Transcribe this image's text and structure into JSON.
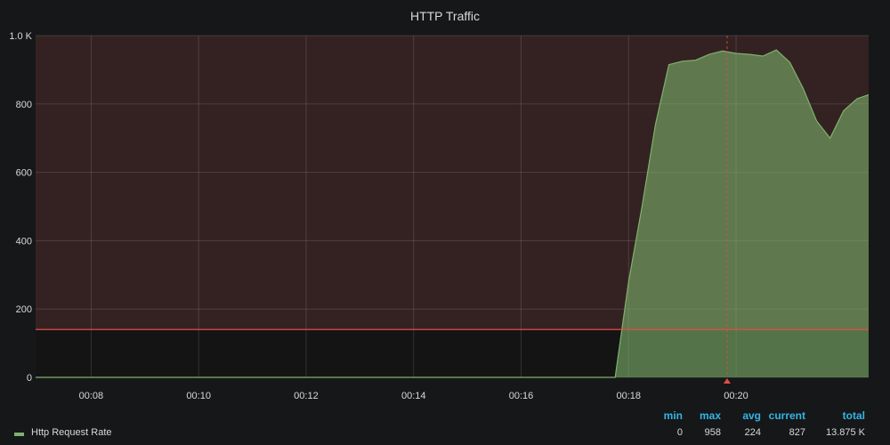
{
  "chart_data": {
    "type": "area",
    "title": "HTTP Traffic",
    "x": [
      "00:06:58",
      "00:07:30",
      "00:08:00",
      "00:09:00",
      "00:10:00",
      "00:11:00",
      "00:12:00",
      "00:13:00",
      "00:14:00",
      "00:15:00",
      "00:16:00",
      "00:17:00",
      "00:17:45",
      "00:18:00",
      "00:18:15",
      "00:18:30",
      "00:18:45",
      "00:19:00",
      "00:19:15",
      "00:19:30",
      "00:19:45",
      "00:20:00",
      "00:20:15",
      "00:20:30",
      "00:20:45",
      "00:21:00",
      "00:21:15",
      "00:21:30",
      "00:21:45",
      "00:22:00",
      "00:22:15",
      "00:22:28"
    ],
    "series": [
      {
        "name": "Http Request Rate",
        "color": "#7eb26d",
        "values": [
          0,
          0,
          0,
          0,
          0,
          0,
          0,
          0,
          0,
          0,
          0,
          0,
          0,
          280,
          500,
          740,
          915,
          925,
          928,
          945,
          955,
          948,
          945,
          940,
          958,
          922,
          845,
          750,
          700,
          780,
          815,
          827
        ]
      }
    ],
    "x_tick_labels": [
      "00:08",
      "00:10",
      "00:12",
      "00:14",
      "00:16",
      "00:18",
      "00:20"
    ],
    "y_tick_labels": [
      "0",
      "200",
      "400",
      "600",
      "800",
      "1.0 K"
    ],
    "ylim": [
      0,
      1000
    ],
    "threshold": {
      "value": 140,
      "line_color": "#e24d42",
      "fill_color": "rgba(234,112,112,0.15)"
    },
    "marker_time": "00:19:50",
    "grid": true,
    "legend_position": "bottom",
    "legend_stats": {
      "headers": [
        "min",
        "max",
        "avg",
        "current",
        "total"
      ],
      "values": [
        "0",
        "958",
        "224",
        "827",
        "13.875 K"
      ]
    }
  }
}
